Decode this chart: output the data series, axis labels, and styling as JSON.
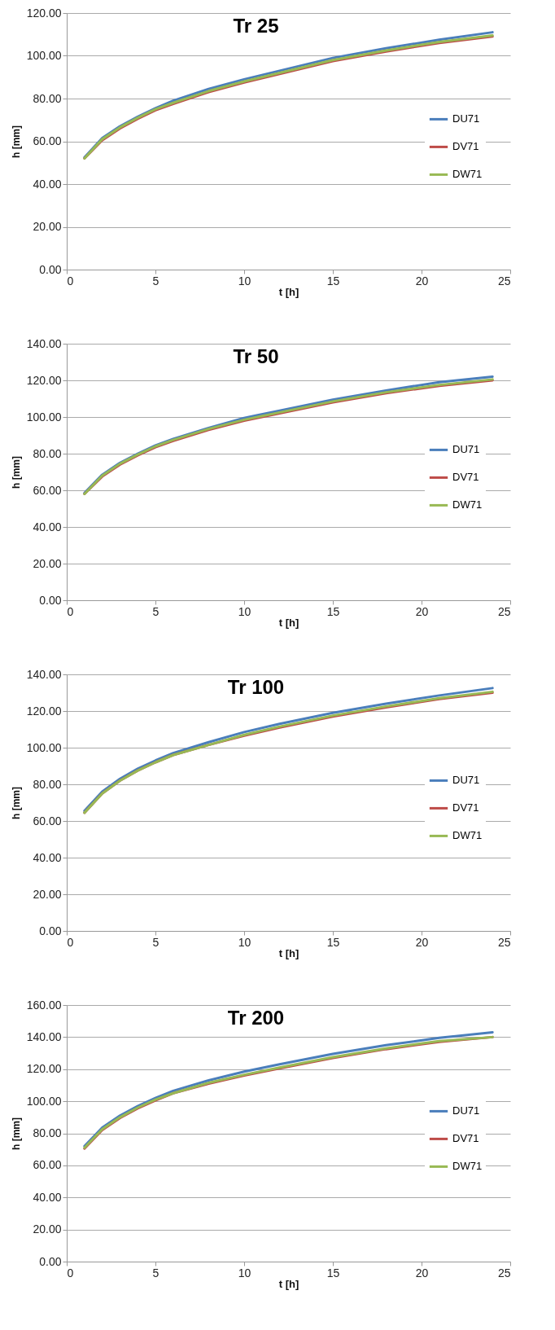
{
  "chart_data": [
    {
      "type": "line",
      "title": "Tr 25",
      "xlabel": "t [h]",
      "ylabel": "h [mm]",
      "x": [
        1,
        2,
        3,
        4,
        5,
        6,
        8,
        10,
        12,
        15,
        18,
        21,
        24
      ],
      "xlim": [
        0,
        25
      ],
      "xticks": [
        0,
        5,
        10,
        15,
        20,
        25
      ],
      "ylim": [
        0,
        120
      ],
      "yticks": [
        {
          "value": 0,
          "label": "0.00"
        },
        {
          "value": 20,
          "label": "20.00"
        },
        {
          "value": 40,
          "label": "40.00"
        },
        {
          "value": 60,
          "label": "60.00"
        },
        {
          "value": 80,
          "label": "80.00"
        },
        {
          "value": 100,
          "label": "100.00"
        },
        {
          "value": 120,
          "label": "120.00"
        }
      ],
      "grid": "y",
      "legend": "right",
      "marker": "none",
      "series": [
        {
          "name": "DU71",
          "color": "#4a7ebb",
          "values": [
            52.5,
            61.5,
            67,
            71.5,
            75.5,
            79,
            84.5,
            89,
            93,
            99,
            103.5,
            107.5,
            111
          ]
        },
        {
          "name": "DV71",
          "color": "#be4b48",
          "values": [
            52,
            60.5,
            66,
            70.5,
            74.5,
            77.5,
            83,
            87.5,
            91.5,
            97.5,
            102,
            106,
            109
          ]
        },
        {
          "name": "DW71",
          "color": "#98b954",
          "values": [
            52,
            61,
            66.5,
            71,
            75,
            78,
            83.5,
            88,
            92,
            98,
            102.5,
            106.5,
            109.5
          ]
        }
      ]
    },
    {
      "type": "line",
      "title": "Tr 50",
      "xlabel": "t [h]",
      "ylabel": "h [mm]",
      "x": [
        1,
        2,
        3,
        4,
        5,
        6,
        8,
        10,
        12,
        15,
        18,
        21,
        24
      ],
      "xlim": [
        0,
        25
      ],
      "xticks": [
        0,
        5,
        10,
        15,
        20,
        25
      ],
      "ylim": [
        0,
        140
      ],
      "yticks": [
        {
          "value": 0,
          "label": "0.00"
        },
        {
          "value": 20,
          "label": "20.00"
        },
        {
          "value": 40,
          "label": "40.00"
        },
        {
          "value": 60,
          "label": "60.00"
        },
        {
          "value": 80,
          "label": "80.00"
        },
        {
          "value": 100,
          "label": "100.00"
        },
        {
          "value": 120,
          "label": "120.00"
        },
        {
          "value": 140,
          "label": "140.00"
        }
      ],
      "grid": "y",
      "legend": "right",
      "marker": "none",
      "series": [
        {
          "name": "DU71",
          "color": "#4a7ebb",
          "values": [
            58.5,
            68.5,
            75,
            80,
            84.5,
            88,
            94,
            99.5,
            103.5,
            109.5,
            114.5,
            119,
            122
          ]
        },
        {
          "name": "DV71",
          "color": "#be4b48",
          "values": [
            58,
            67.5,
            74,
            79,
            83.5,
            87,
            93,
            98,
            102,
            108,
            113,
            117,
            120
          ]
        },
        {
          "name": "DW71",
          "color": "#98b954",
          "values": [
            58,
            68,
            74.5,
            79.5,
            84,
            87.5,
            93.5,
            98.5,
            102.5,
            108.5,
            113.5,
            117.5,
            120.5
          ]
        }
      ]
    },
    {
      "type": "line",
      "title": "Tr 100",
      "xlabel": "t [h]",
      "ylabel": "h [mm]",
      "x": [
        1,
        2,
        3,
        4,
        5,
        6,
        8,
        10,
        12,
        15,
        18,
        21,
        24
      ],
      "xlim": [
        0,
        25
      ],
      "xticks": [
        0,
        5,
        10,
        15,
        20,
        25
      ],
      "ylim": [
        0,
        140
      ],
      "yticks": [
        {
          "value": 0,
          "label": "0.00"
        },
        {
          "value": 20,
          "label": "20.00"
        },
        {
          "value": 40,
          "label": "40.00"
        },
        {
          "value": 60,
          "label": "60.00"
        },
        {
          "value": 80,
          "label": "80.00"
        },
        {
          "value": 100,
          "label": "100.00"
        },
        {
          "value": 120,
          "label": "120.00"
        },
        {
          "value": 140,
          "label": "140.00"
        }
      ],
      "grid": "y",
      "legend": "right",
      "marker": "none",
      "series": [
        {
          "name": "DU71",
          "color": "#4a7ebb",
          "values": [
            65.5,
            76,
            83,
            88.5,
            93,
            97,
            103,
            108.5,
            113,
            119,
            124,
            128.5,
            132.5
          ]
        },
        {
          "name": "DV71",
          "color": "#be4b48",
          "values": [
            64.5,
            75,
            82,
            87.5,
            92,
            96,
            101.5,
            106.5,
            111,
            117,
            122,
            126.5,
            130
          ]
        },
        {
          "name": "DW71",
          "color": "#98b954",
          "values": [
            64.5,
            75,
            82,
            87.5,
            92,
            96,
            101.5,
            107,
            111.5,
            117.5,
            122.5,
            127,
            130.5
          ]
        }
      ]
    },
    {
      "type": "line",
      "title": "Tr 200",
      "xlabel": "t [h]",
      "ylabel": "h [mm]",
      "x": [
        1,
        2,
        3,
        4,
        5,
        6,
        8,
        10,
        12,
        15,
        18,
        21,
        24
      ],
      "xlim": [
        0,
        25
      ],
      "xticks": [
        0,
        5,
        10,
        15,
        20,
        25
      ],
      "ylim": [
        0,
        160
      ],
      "yticks": [
        {
          "value": 0,
          "label": "0.00"
        },
        {
          "value": 20,
          "label": "20.00"
        },
        {
          "value": 40,
          "label": "40.00"
        },
        {
          "value": 60,
          "label": "60.00"
        },
        {
          "value": 80,
          "label": "80.00"
        },
        {
          "value": 100,
          "label": "100.00"
        },
        {
          "value": 120,
          "label": "120.00"
        },
        {
          "value": 140,
          "label": "140.00"
        },
        {
          "value": 160,
          "label": "160.00"
        }
      ],
      "grid": "y",
      "legend": "right",
      "marker": "none",
      "series": [
        {
          "name": "DU71",
          "color": "#4a7ebb",
          "values": [
            72,
            83.5,
            91,
            97,
            102,
            106.5,
            113,
            118.5,
            123,
            129.5,
            135,
            139.5,
            143
          ]
        },
        {
          "name": "DV71",
          "color": "#be4b48",
          "values": [
            70.5,
            82,
            89.5,
            95.5,
            100.5,
            105,
            111,
            116,
            120.5,
            127,
            132.5,
            137,
            140
          ]
        },
        {
          "name": "DW71",
          "color": "#98b954",
          "values": [
            71,
            82.5,
            90,
            96,
            101,
            105,
            111.5,
            116.5,
            121,
            127.5,
            133,
            137.5,
            140
          ]
        }
      ]
    }
  ]
}
